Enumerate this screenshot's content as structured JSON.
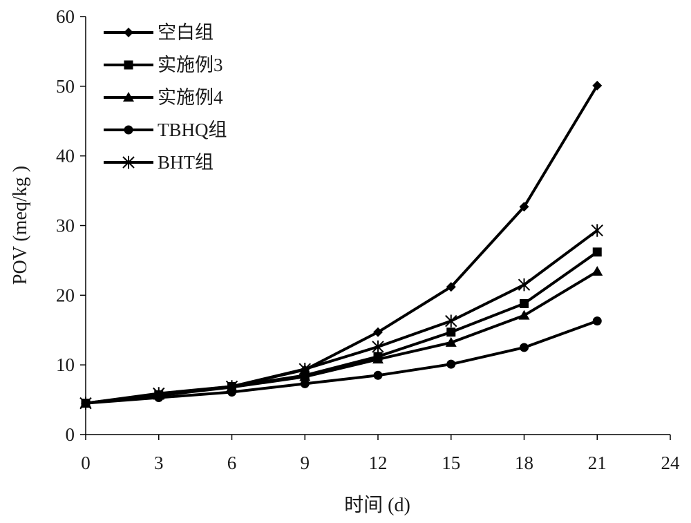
{
  "chart_data": {
    "type": "line",
    "title": "",
    "xlabel": "时间 (d)",
    "ylabel": "POV (meq/kg )",
    "x": [
      0,
      3,
      6,
      9,
      12,
      15,
      18,
      21
    ],
    "xlim": [
      0,
      24
    ],
    "ylim": [
      0,
      60
    ],
    "xticks": [
      "0",
      "3",
      "6",
      "9",
      "12",
      "15",
      "18",
      "21",
      "24"
    ],
    "yticks": [
      "0",
      "10",
      "20",
      "30",
      "40",
      "50",
      "60"
    ],
    "grid": false,
    "legend_position": "top-left",
    "line_color": "#000000",
    "series": [
      {
        "name": "空白组",
        "marker": "diamond",
        "values": [
          4.5,
          5.8,
          6.9,
          9.3,
          14.7,
          21.2,
          32.7,
          50.1
        ]
      },
      {
        "name": "实施例3",
        "marker": "square",
        "values": [
          4.5,
          5.7,
          6.9,
          8.5,
          11.2,
          14.7,
          18.8,
          26.2
        ]
      },
      {
        "name": "实施例4",
        "marker": "triangle",
        "values": [
          4.5,
          5.6,
          6.8,
          8.3,
          10.8,
          13.2,
          17.1,
          23.4
        ]
      },
      {
        "name": "TBHQ组",
        "marker": "circle",
        "values": [
          4.5,
          5.3,
          6.1,
          7.3,
          8.5,
          10.1,
          12.5,
          16.3
        ]
      },
      {
        "name": "BHT组",
        "marker": "asterisk",
        "values": [
          4.5,
          5.9,
          6.9,
          9.4,
          12.6,
          16.3,
          21.5,
          29.3
        ]
      }
    ]
  }
}
